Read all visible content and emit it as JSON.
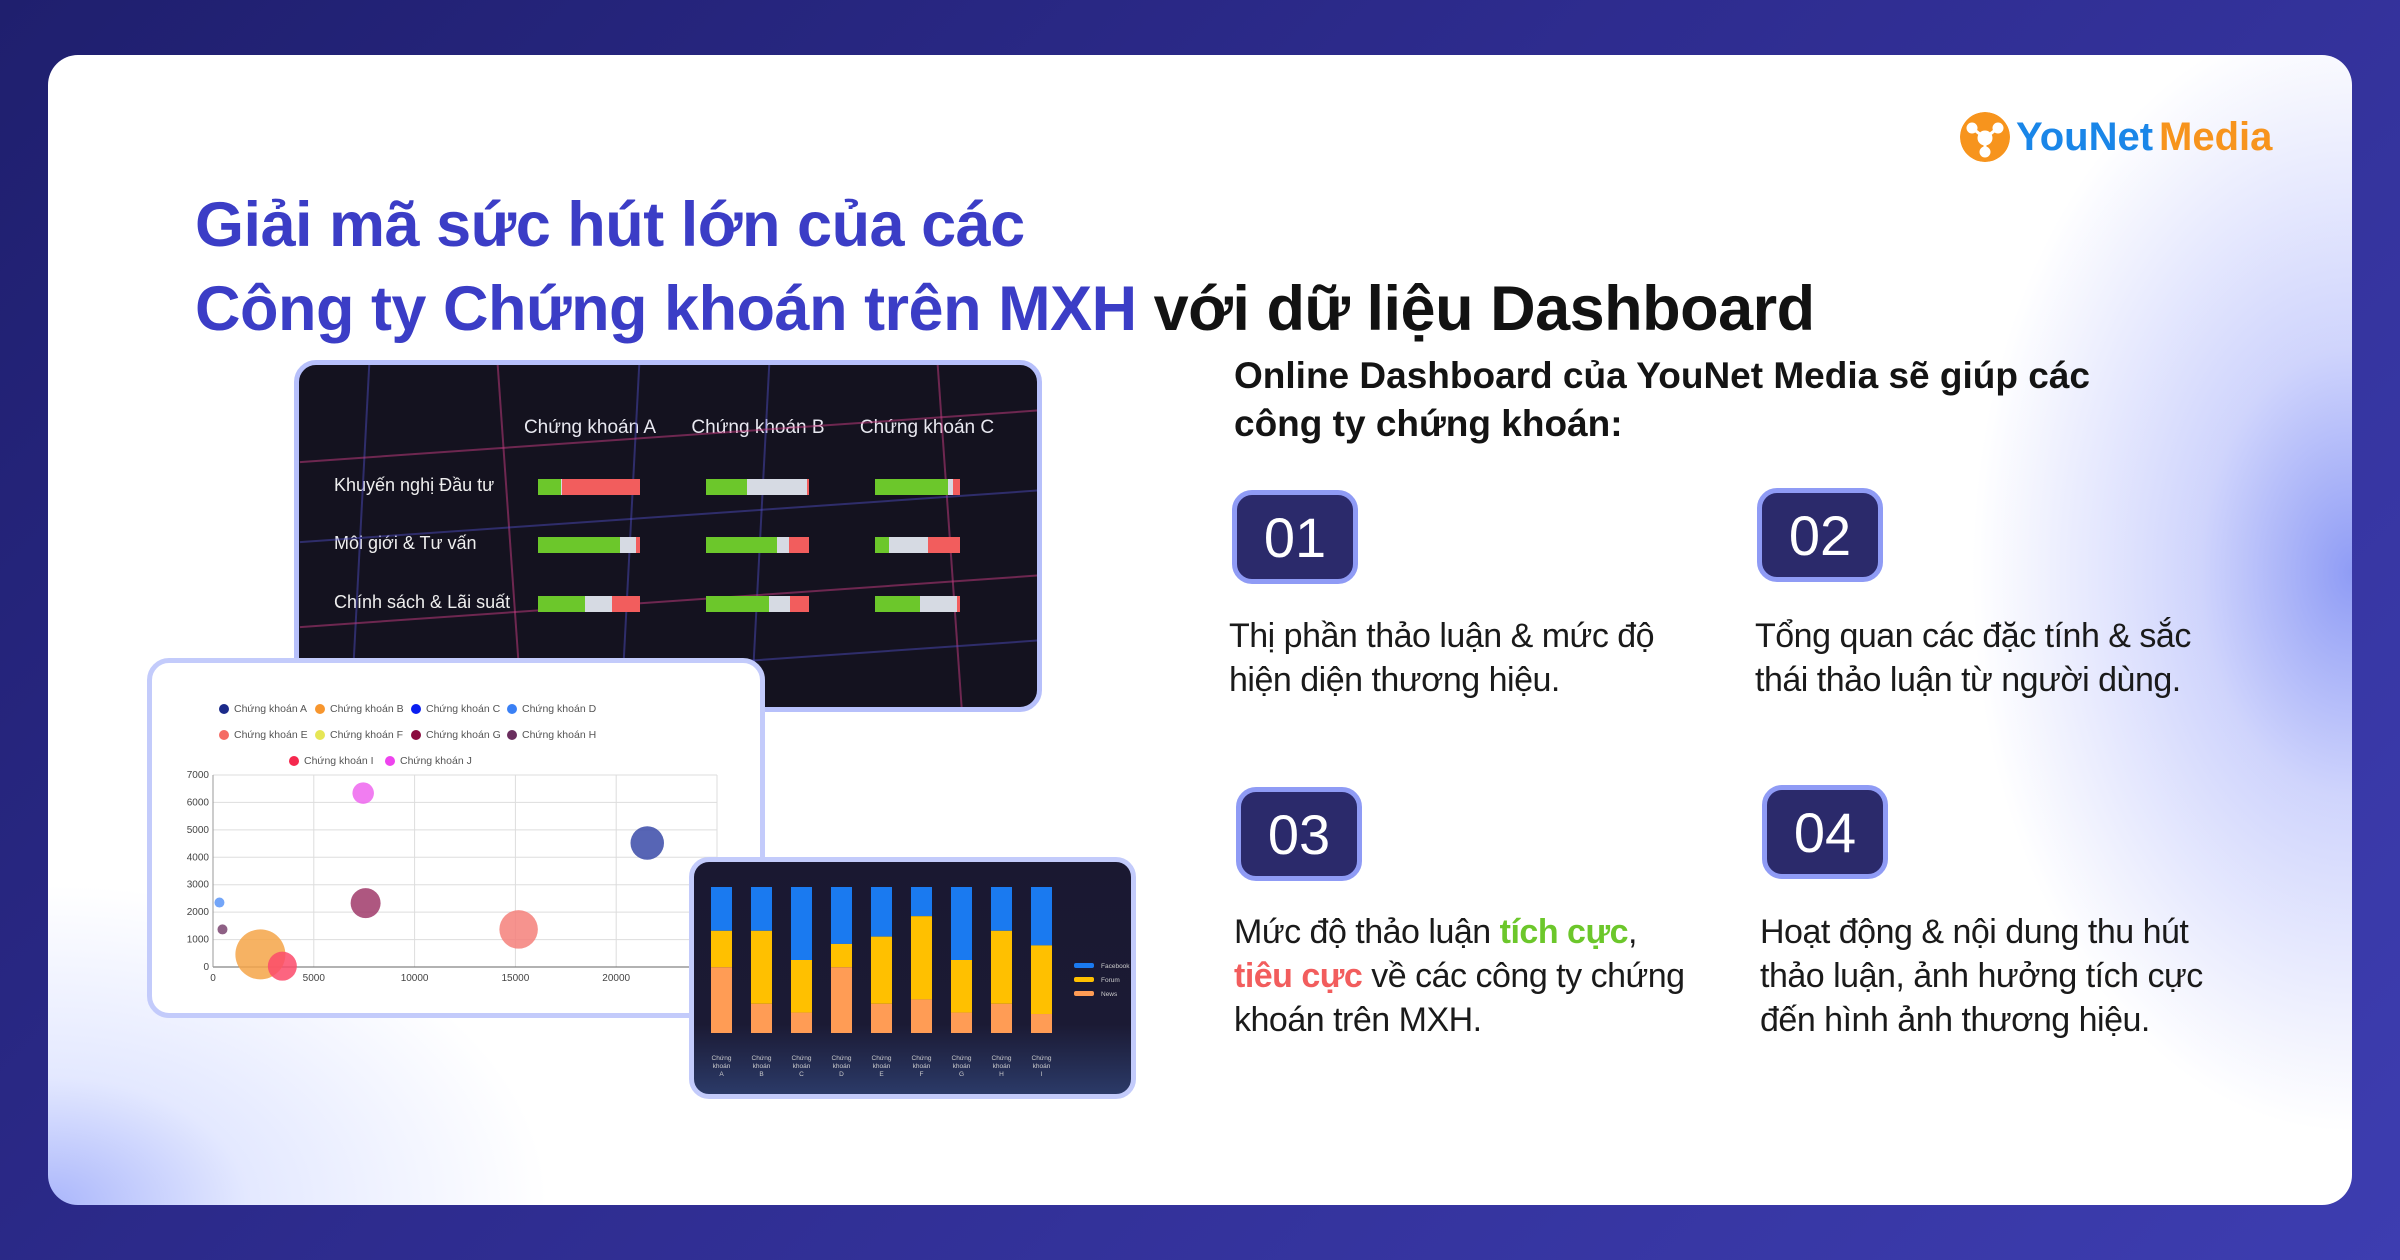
{
  "title": {
    "line1": "Giải mã sức hút lớn của các",
    "line2_accent": "Công ty Chứng khoán trên MXH",
    "line2_dark": "với dữ liệu Dashboard"
  },
  "logo": {
    "part1": "YouNet",
    "part2": "Media"
  },
  "colors": {
    "accent": "#3b3dc6",
    "badge": "#2b2a6b",
    "positive": "#6cc72b",
    "negative": "#f25d5d",
    "neutral": "#d6dae3"
  },
  "heading": "Online Dashboard của YouNet Media sẽ giúp các công ty chứng khoán:",
  "features": [
    {
      "num": "01",
      "text": "Thị phần thảo luận & mức độ hiện diện thương hiệu."
    },
    {
      "num": "02",
      "text": "Tổng quan các đặc tính & sắc thái thảo luận từ người dùng."
    },
    {
      "num": "03",
      "pre": "Mức độ thảo luận ",
      "pos": "tích cực",
      "comma": ",",
      "neg": "tiêu cực",
      "post": " về các công ty chứng khoán trên MXH."
    },
    {
      "num": "04",
      "text": "Hoạt động & nội dung thu hút thảo luận, ảnh hưởng tích cực đến hình ảnh thương hiệu."
    }
  ],
  "chart_data": [
    {
      "type": "bar",
      "stacked": true,
      "orientation": "horizontal",
      "categories": [
        "Khuyến nghị Đầu tư",
        "Môi giới & Tư vấn",
        "Chính sách & Lãi suất"
      ],
      "columns": [
        "Chứng khoán A",
        "Chứng khoán B",
        "Chứng khoán C"
      ],
      "values_percent": {
        "Chứng khoán A": [
          [
            23,
            1,
            76
          ],
          [
            80,
            16,
            4
          ],
          [
            46,
            27,
            27
          ]
        ],
        "Chứng khoán B": [
          [
            40,
            58,
            2
          ],
          [
            69,
            12,
            19
          ],
          [
            61,
            21,
            18
          ]
        ],
        "Chứng khoán C": [
          [
            86,
            6,
            8
          ],
          [
            16,
            46,
            38
          ],
          [
            53,
            43,
            4
          ]
        ]
      },
      "segment_colors": [
        "#6cc72b",
        "#d6dae3",
        "#f25d5d"
      ]
    },
    {
      "type": "scatter",
      "bubble": true,
      "xlim": [
        0,
        25000
      ],
      "ylim": [
        0,
        7000
      ],
      "xticks": [
        "0",
        "5000",
        "10000",
        "15000",
        "20000"
      ],
      "yticks": [
        "0",
        "1000",
        "2000",
        "3000",
        "4000",
        "5000",
        "6000",
        "7000"
      ],
      "grid": true,
      "legend": [
        {
          "name": "Chứng khoán A",
          "color": "#1b2a8a"
        },
        {
          "name": "Chứng khoán B",
          "color": "#f7962e"
        },
        {
          "name": "Chứng khoán C",
          "color": "#0a1ef0"
        },
        {
          "name": "Chứng khoán D",
          "color": "#3a80f5"
        },
        {
          "name": "Chứng khoán E",
          "color": "#f56b64"
        },
        {
          "name": "Chứng khoán F",
          "color": "#e6e655"
        },
        {
          "name": "Chứng khoán G",
          "color": "#8a0a3e"
        },
        {
          "name": "Chứng khoán H",
          "color": "#6a2e5e"
        },
        {
          "name": "Chứng khoán I",
          "color": "#f5284e"
        },
        {
          "name": "Chứng khoán J",
          "color": "#ee44ee"
        }
      ],
      "legend_placement": "top",
      "points": [
        {
          "series": "Chứng khoán J",
          "x": 7450,
          "y": 6340,
          "size": 43,
          "color": "#ee66ee"
        },
        {
          "series": "Chứng khoán A",
          "x": 21540,
          "y": 4520,
          "size": 67,
          "color": "#3a4aa8"
        },
        {
          "series": "Chứng khoán D",
          "x": 320,
          "y": 2350,
          "size": 20,
          "color": "#5b95f7"
        },
        {
          "series": "Chứng khoán G",
          "x": 7570,
          "y": 2330,
          "size": 60,
          "color": "#a03a6a"
        },
        {
          "series": "Chứng khoán H",
          "x": 470,
          "y": 1370,
          "size": 20,
          "color": "#7a4470"
        },
        {
          "series": "Chứng khoán E",
          "x": 15160,
          "y": 1370,
          "size": 77,
          "color": "#f5807a"
        },
        {
          "series": "Chứng khoán B",
          "x": 2350,
          "y": 460,
          "size": 100,
          "color": "#f5a448"
        },
        {
          "series": "Chứng khoán I",
          "x": 3440,
          "y": 30,
          "size": 58,
          "color": "#fb4a6a"
        }
      ]
    },
    {
      "type": "bar",
      "stacked": true,
      "percent": true,
      "categories": [
        "Chứng khoán A",
        "Chứng khoán B",
        "Chứng khoán C",
        "Chứng khoán D",
        "Chứng khoán E",
        "Chứng khoán F",
        "Chứng khoán G",
        "Chứng khoán H",
        "Chứng khoán I"
      ],
      "series": [
        {
          "name": "Facebook",
          "color": "#1a7af0",
          "values": [
            30,
            30,
            50,
            39,
            34,
            20,
            50,
            30,
            40
          ]
        },
        {
          "name": "Forum",
          "color": "#ffc000",
          "values": [
            25,
            50,
            36,
            16,
            46,
            57,
            36,
            50,
            47
          ]
        },
        {
          "name": "News",
          "color": "#ff9c55",
          "values": [
            45,
            20,
            14,
            45,
            20,
            23,
            14,
            20,
            13
          ]
        }
      ],
      "legend_placement": "right"
    }
  ]
}
